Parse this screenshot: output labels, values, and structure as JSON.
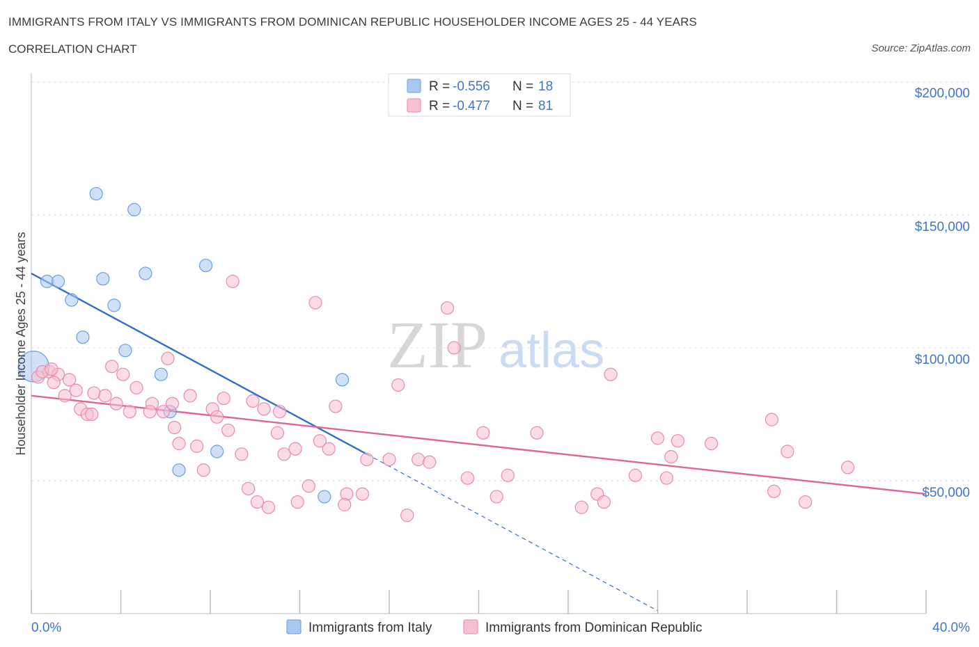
{
  "title": "IMMIGRANTS FROM ITALY VS IMMIGRANTS FROM DOMINICAN REPUBLIC HOUSEHOLDER INCOME AGES 25 - 44 YEARS",
  "subtitle": "CORRELATION CHART",
  "source": "Source: ZipAtlas.com",
  "watermark": {
    "zip": "ZIP",
    "atlas": "atlas"
  },
  "chart_data": {
    "type": "scatter",
    "ylabel": "Householder Income Ages 25 - 44 years",
    "x_tick_labels": {
      "left": "0.0%",
      "right": "40.0%"
    },
    "y_tick_labels": [
      "$200,000",
      "$150,000",
      "$100,000",
      "$50,000"
    ],
    "y_ticks": [
      200000,
      150000,
      100000,
      50000
    ],
    "xlim": [
      0,
      40
    ],
    "ylim": [
      0,
      200000
    ],
    "grid": true,
    "legend_position": "top-center",
    "stats_legend": [
      {
        "r_label": "R =",
        "r": "-0.556",
        "n_label": "N =",
        "n": "18",
        "color": "#a9c8f0",
        "stroke": "#6a9ee0"
      },
      {
        "r_label": "R =",
        "r": "-0.477",
        "n_label": "N =",
        "n": "81",
        "color": "#f7bfd2",
        "stroke": "#e88aab"
      }
    ],
    "series": [
      {
        "name": "Immigrants from Italy",
        "color": "#a9c8f0",
        "stroke": "#6a9ee0",
        "line_color": "#2f6fd0",
        "trend": {
          "x0": 0,
          "y0": 128000,
          "x1": 15,
          "y1": 60000,
          "dash_to_x": 28
        },
        "points": [
          [
            2.9,
            158000
          ],
          [
            4.6,
            152000
          ],
          [
            7.8,
            131000
          ],
          [
            5.1,
            128000
          ],
          [
            3.2,
            126000
          ],
          [
            0.7,
            125000
          ],
          [
            1.2,
            125000
          ],
          [
            1.8,
            118000
          ],
          [
            3.7,
            116000
          ],
          [
            2.3,
            104000
          ],
          [
            4.2,
            99000
          ],
          [
            5.8,
            90000
          ],
          [
            13.9,
            88000
          ],
          [
            0.1,
            93000
          ],
          [
            6.2,
            76000
          ],
          [
            8.3,
            61000
          ],
          [
            6.6,
            54000
          ],
          [
            13.1,
            44000
          ]
        ],
        "sizes": [
          1,
          1,
          1,
          1,
          1,
          1,
          1,
          1,
          1,
          1,
          1,
          1,
          1,
          3,
          1,
          1,
          1,
          1
        ]
      },
      {
        "name": "Immigrants from Dominican Republic",
        "color": "#f7bfd2",
        "stroke": "#e88aab",
        "line_color": "#e0639a",
        "trend": {
          "x0": 0,
          "y0": 82000,
          "x1": 40,
          "y1": 45000
        },
        "points": [
          [
            9.0,
            125000
          ],
          [
            12.7,
            117000
          ],
          [
            18.6,
            115000
          ],
          [
            18.9,
            100000
          ],
          [
            6.1,
            96000
          ],
          [
            3.6,
            93000
          ],
          [
            0.8,
            91000
          ],
          [
            1.2,
            90000
          ],
          [
            4.1,
            90000
          ],
          [
            25.9,
            90000
          ],
          [
            0.3,
            89000
          ],
          [
            1.0,
            87000
          ],
          [
            1.7,
            88000
          ],
          [
            16.4,
            86000
          ],
          [
            2.0,
            84000
          ],
          [
            4.7,
            85000
          ],
          [
            1.5,
            82000
          ],
          [
            2.8,
            83000
          ],
          [
            3.3,
            82000
          ],
          [
            7.1,
            82000
          ],
          [
            8.6,
            81000
          ],
          [
            9.9,
            80000
          ],
          [
            3.8,
            79000
          ],
          [
            5.4,
            79000
          ],
          [
            6.3,
            79000
          ],
          [
            13.6,
            78000
          ],
          [
            2.2,
            77000
          ],
          [
            4.4,
            76000
          ],
          [
            5.3,
            76000
          ],
          [
            5.9,
            76000
          ],
          [
            8.1,
            77000
          ],
          [
            10.4,
            77000
          ],
          [
            11.1,
            76000
          ],
          [
            2.5,
            75000
          ],
          [
            8.3,
            74000
          ],
          [
            33.1,
            73000
          ],
          [
            6.4,
            70000
          ],
          [
            8.8,
            69000
          ],
          [
            11.0,
            68000
          ],
          [
            20.2,
            68000
          ],
          [
            22.6,
            68000
          ],
          [
            28.0,
            66000
          ],
          [
            28.9,
            65000
          ],
          [
            12.9,
            65000
          ],
          [
            6.6,
            64000
          ],
          [
            7.4,
            63000
          ],
          [
            30.4,
            64000
          ],
          [
            11.8,
            62000
          ],
          [
            13.3,
            62000
          ],
          [
            33.8,
            61000
          ],
          [
            9.4,
            60000
          ],
          [
            11.3,
            60000
          ],
          [
            28.6,
            59000
          ],
          [
            15.0,
            58000
          ],
          [
            16.0,
            58000
          ],
          [
            17.3,
            58000
          ],
          [
            17.8,
            57000
          ],
          [
            7.7,
            54000
          ],
          [
            36.5,
            55000
          ],
          [
            27.0,
            52000
          ],
          [
            21.3,
            52000
          ],
          [
            28.4,
            51000
          ],
          [
            19.5,
            51000
          ],
          [
            12.4,
            48000
          ],
          [
            9.7,
            47000
          ],
          [
            33.2,
            46000
          ],
          [
            14.1,
            45000
          ],
          [
            14.8,
            45000
          ],
          [
            20.8,
            44000
          ],
          [
            25.3,
            45000
          ],
          [
            25.6,
            42000
          ],
          [
            34.6,
            42000
          ],
          [
            10.1,
            42000
          ],
          [
            11.9,
            42000
          ],
          [
            14.0,
            41000
          ],
          [
            10.6,
            40000
          ],
          [
            24.6,
            40000
          ],
          [
            16.8,
            37000
          ],
          [
            0.5,
            91000
          ],
          [
            0.9,
            92000
          ],
          [
            2.7,
            75000
          ]
        ]
      }
    ]
  }
}
